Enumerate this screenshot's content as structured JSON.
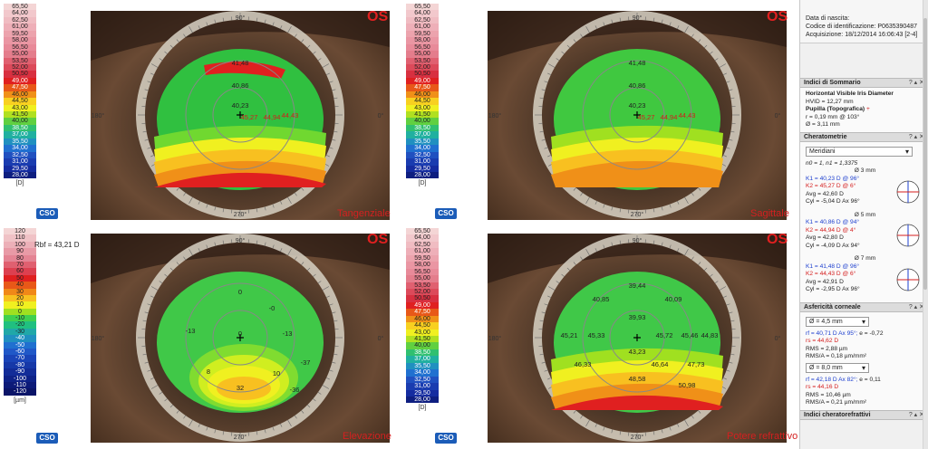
{
  "scales": {
    "curvature": {
      "values": [
        "65,50",
        "64,00",
        "62,50",
        "61,00",
        "59,50",
        "58,00",
        "56,50",
        "55,00",
        "53,50",
        "52,00",
        "50,50",
        "49,00",
        "47,50",
        "46,00",
        "44,50",
        "43,00",
        "41,50",
        "40,00",
        "38,50",
        "37,00",
        "35,50",
        "34,00",
        "32,50",
        "31,00",
        "29,50",
        "28,00"
      ],
      "colors": [
        "#f4d5d5",
        "#f2c8cc",
        "#f0bcc2",
        "#eeafb8",
        "#eca3ad",
        "#ea96a3",
        "#e88a99",
        "#e47d8c",
        "#e06070",
        "#dc4a5a",
        "#d83040",
        "#e02020",
        "#e85818",
        "#f09018",
        "#f8d020",
        "#f0f020",
        "#b0e020",
        "#60d040",
        "#30c070",
        "#20b0a0",
        "#2090c0",
        "#2070d0",
        "#2050c0",
        "#1a3cb0",
        "#152ca0",
        "#0e1e80"
      ],
      "unit": "[D]"
    },
    "elevation": {
      "values": [
        "120",
        "110",
        "100",
        "90",
        "80",
        "70",
        "60",
        "50",
        "40",
        "30",
        "20",
        "10",
        "0",
        "-10",
        "-20",
        "-30",
        "-40",
        "-50",
        "-60",
        "-70",
        "-80",
        "-90",
        "-100",
        "-110",
        "-120"
      ],
      "colors": [
        "#f4d5d5",
        "#f0c2c6",
        "#ecb0b8",
        "#e89aa6",
        "#e48494",
        "#e06070",
        "#dc4050",
        "#e02020",
        "#e85818",
        "#f08818",
        "#f8c020",
        "#f0f020",
        "#a0e020",
        "#40d050",
        "#20c080",
        "#20a8a8",
        "#2090c0",
        "#2070d0",
        "#2058c8",
        "#1a44b8",
        "#1638a8",
        "#122c98",
        "#0e2288",
        "#0c1a78",
        "#0a1468"
      ],
      "unit": "[µm]"
    }
  },
  "maps": {
    "tangential": {
      "eye": "OS",
      "label": "Tangenziale",
      "values": [
        "41,48",
        "40,86",
        "40,23",
        "45,27",
        "44,94",
        "44,43"
      ]
    },
    "sagittal": {
      "eye": "OS",
      "label": "Sagittale",
      "values": [
        "41,48",
        "40,86",
        "40,23",
        "45,27",
        "44,94",
        "44,43"
      ]
    },
    "elevation": {
      "eye": "OS",
      "label": "Elevazione",
      "rbf": "Rbf = 43,21 D",
      "values": [
        "0",
        "-13",
        "0",
        "-13",
        "8",
        "32",
        "10",
        "-36",
        "-37",
        "-0"
      ]
    },
    "refractive": {
      "eye": "OS",
      "label": "Potere refrattivo",
      "values": [
        "39,44",
        "40,85",
        "40,09",
        "39,93",
        "45,21",
        "45,33",
        "45,72",
        "45,46",
        "44,83",
        "43,23",
        "46,33",
        "46,64",
        "48,58",
        "47,73",
        "50,98"
      ]
    },
    "axis_labels": [
      "90°",
      "180°",
      "270°",
      "0°"
    ]
  },
  "logo": "CSO",
  "panel": {
    "info": {
      "birth": "Data di nascita:",
      "id": "Codice di identificazione: P0635390487",
      "acq": "Acquisizione: 18/12/2014 16:06:43 [2-4]"
    },
    "summary": {
      "title": "Indici di Sommario",
      "hvid_title": "Horizontal Visible Iris Diameter",
      "hvid": "HVID = 12,27 mm",
      "pupil": "Pupilla (Topografica)",
      "r": "r = 0,19 mm @ 103°",
      "d": "Ø = 3,11 mm"
    },
    "keratometry": {
      "title": "Cheratometrie",
      "dropdown": "Meridiani",
      "indices": "n0 = 1, n1 = 1,3375",
      "groups": [
        {
          "diameter": "Ø 3 mm",
          "k1": "K1 = 40,23 D @ 96°",
          "k2": "K2 = 45,27 D @ 6°",
          "avg": "Avg = 42,60 D",
          "cyl": "Cyl = -5,04 D Ax 96°"
        },
        {
          "diameter": "Ø 5 mm",
          "k1": "K1 = 40,86 D @ 94°",
          "k2": "K2 = 44,94 D @ 4°",
          "avg": "Avg = 42,80 D",
          "cyl": "Cyl = -4,09 D Ax 94°"
        },
        {
          "diameter": "Ø 7 mm",
          "k1": "K1 = 41,48 D @ 96°",
          "k2": "K2 = 44,43 D @ 6°",
          "avg": "Avg = 42,91 D",
          "cyl": "Cyl = -2,95 D Ax 96°"
        }
      ]
    },
    "asphericity": {
      "title": "Asfericità corneale",
      "blocks": [
        {
          "dropdown": "Ø = 4,5 mm",
          "rf": "rf = 40,71 D Ax 95°;",
          "e": "e = -0,72",
          "rs": "rs = 44,62 D",
          "rms": "RMS = 2,88 µm",
          "rmsa": "RMS/A = 0,18 µm/mm²"
        },
        {
          "dropdown": "Ø = 8,0 mm",
          "rf": "rf = 42,18 D Ax 82°;",
          "e": "e = 0,11",
          "rs": "rs = 44,16 D",
          "rms": "RMS = 10,46 µm",
          "rmsa": "RMS/A = 0,21 µm/mm²"
        }
      ]
    },
    "refractive_indices": {
      "title": "Indici cheratorefrattivi"
    },
    "controls": "? ▴ ✕"
  }
}
